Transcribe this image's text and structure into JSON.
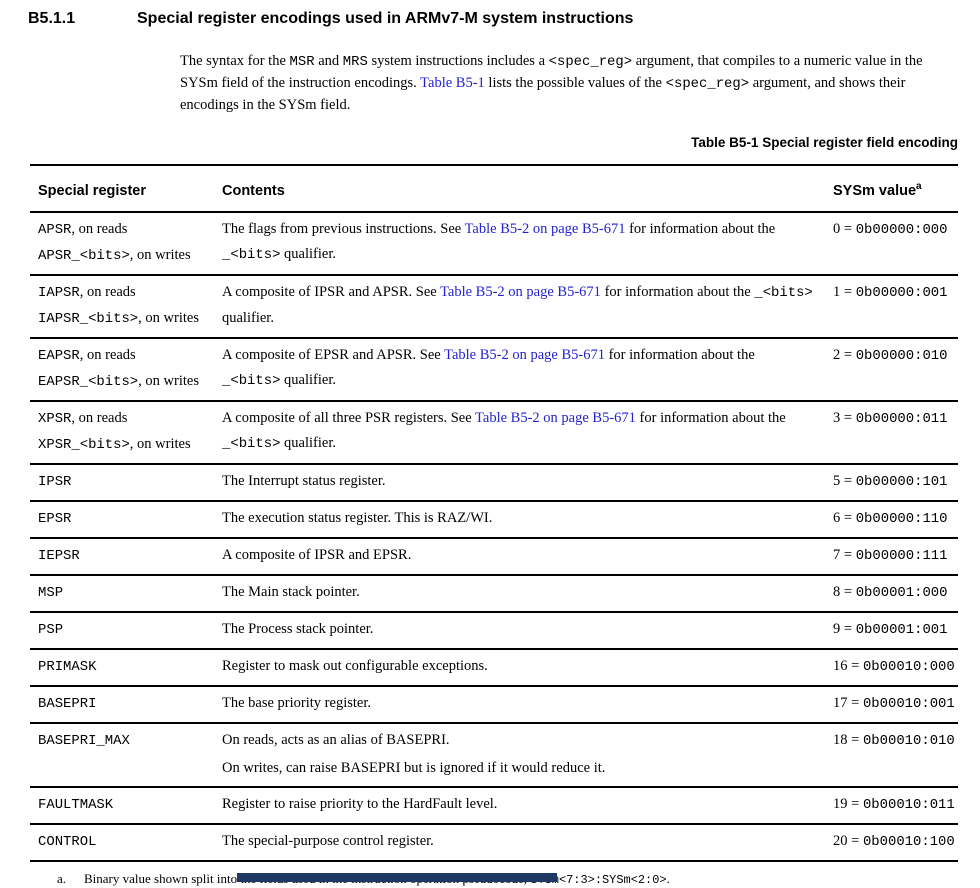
{
  "colors": {
    "link": "#2222d2",
    "text": "#000000",
    "rule": "#000000",
    "bottom_bar": "#1f3864"
  },
  "section": {
    "number": "B5.1.1",
    "title": "Special register encodings used in ARMv7-M system instructions"
  },
  "intro": {
    "pieces": [
      {
        "t": "The syntax for the ",
        "k": "plain"
      },
      {
        "t": "MSR",
        "k": "mono"
      },
      {
        "t": " and ",
        "k": "plain"
      },
      {
        "t": "MRS",
        "k": "mono"
      },
      {
        "t": " system instructions includes a ",
        "k": "plain"
      },
      {
        "t": "<spec_reg>",
        "k": "mono"
      },
      {
        "t": " argument, that compiles to a numeric value in the SYSm field of the instruction encodings. ",
        "k": "plain"
      },
      {
        "t": "Table B5-1",
        "k": "link",
        "name": "table-b5-1-link"
      },
      {
        "t": " lists the possible values of the ",
        "k": "plain"
      },
      {
        "t": "<spec_reg>",
        "k": "mono"
      },
      {
        "t": " argument, and shows their encodings in the SYSm field.",
        "k": "plain"
      }
    ]
  },
  "table": {
    "caption": "Table B5-1 Special register field encoding",
    "columns": [
      {
        "label": "Special register"
      },
      {
        "label": "Contents"
      },
      {
        "label": "SYSm value",
        "sup": "a"
      }
    ],
    "rows": [
      {
        "register_lines": [
          [
            {
              "t": "APSR",
              "k": "mono"
            },
            {
              "t": ", on reads",
              "k": "plain"
            }
          ],
          [
            {
              "t": "APSR_<bits>",
              "k": "mono"
            },
            {
              "t": ", on writes",
              "k": "plain"
            }
          ]
        ],
        "content_lines": [
          [
            {
              "t": "The flags from previous instructions. See ",
              "k": "plain"
            },
            {
              "t": "Table B5-2 on page B5-671",
              "k": "link",
              "name": "table-b5-2-link"
            },
            {
              "t": " for information about the ",
              "k": "plain"
            },
            {
              "t": "_<bits>",
              "k": "mono"
            },
            {
              "t": " qualifier.",
              "k": "plain"
            }
          ]
        ],
        "sysm": {
          "dec": "0",
          "sep": " = ",
          "bin": "0b00000:000"
        }
      },
      {
        "register_lines": [
          [
            {
              "t": "IAPSR",
              "k": "mono"
            },
            {
              "t": ", on reads",
              "k": "plain"
            }
          ],
          [
            {
              "t": "IAPSR_<bits>",
              "k": "mono"
            },
            {
              "t": ", on writes",
              "k": "plain"
            }
          ]
        ],
        "content_lines": [
          [
            {
              "t": "A composite of IPSR and APSR. See ",
              "k": "plain"
            },
            {
              "t": "Table B5-2 on page B5-671",
              "k": "link",
              "name": "table-b5-2-link"
            },
            {
              "t": " for information about the ",
              "k": "plain"
            },
            {
              "t": "_<bits>",
              "k": "mono"
            },
            {
              "t": " qualifier.",
              "k": "plain"
            }
          ]
        ],
        "sysm": {
          "dec": "1",
          "sep": " = ",
          "bin": "0b00000:001"
        }
      },
      {
        "register_lines": [
          [
            {
              "t": "EAPSR",
              "k": "mono"
            },
            {
              "t": ", on reads",
              "k": "plain"
            }
          ],
          [
            {
              "t": "EAPSR_<bits>",
              "k": "mono"
            },
            {
              "t": ", on writes",
              "k": "plain"
            }
          ]
        ],
        "content_lines": [
          [
            {
              "t": "A composite of EPSR and APSR. See ",
              "k": "plain"
            },
            {
              "t": "Table B5-2 on page B5-671",
              "k": "link",
              "name": "table-b5-2-link"
            },
            {
              "t": " for information about the ",
              "k": "plain"
            },
            {
              "t": "_<bits>",
              "k": "mono"
            },
            {
              "t": " qualifier.",
              "k": "plain"
            }
          ]
        ],
        "sysm": {
          "dec": "2",
          "sep": " = ",
          "bin": "0b00000:010"
        }
      },
      {
        "register_lines": [
          [
            {
              "t": "XPSR",
              "k": "mono"
            },
            {
              "t": ", on reads",
              "k": "plain"
            }
          ],
          [
            {
              "t": "XPSR_<bits>",
              "k": "mono"
            },
            {
              "t": ", on writes",
              "k": "plain"
            }
          ]
        ],
        "content_lines": [
          [
            {
              "t": "A composite of all three PSR registers. See ",
              "k": "plain"
            },
            {
              "t": "Table B5-2 on page B5-671",
              "k": "link",
              "name": "table-b5-2-link"
            },
            {
              "t": " for information about the ",
              "k": "plain"
            },
            {
              "t": "_<bits>",
              "k": "mono"
            },
            {
              "t": " qualifier.",
              "k": "plain"
            }
          ]
        ],
        "sysm": {
          "dec": "3",
          "sep": " = ",
          "bin": "0b00000:011"
        }
      },
      {
        "register_lines": [
          [
            {
              "t": "IPSR",
              "k": "mono"
            }
          ]
        ],
        "content_lines": [
          [
            {
              "t": "The Interrupt status register.",
              "k": "plain"
            }
          ]
        ],
        "sysm": {
          "dec": "5",
          "sep": " = ",
          "bin": "0b00000:101"
        }
      },
      {
        "register_lines": [
          [
            {
              "t": "EPSR",
              "k": "mono"
            }
          ]
        ],
        "content_lines": [
          [
            {
              "t": "The execution status register. This is RAZ/WI.",
              "k": "plain"
            }
          ]
        ],
        "sysm": {
          "dec": "6",
          "sep": " = ",
          "bin": "0b00000:110"
        }
      },
      {
        "register_lines": [
          [
            {
              "t": "IEPSR",
              "k": "mono"
            }
          ]
        ],
        "content_lines": [
          [
            {
              "t": "A composite of IPSR and EPSR.",
              "k": "plain"
            }
          ]
        ],
        "sysm": {
          "dec": "7",
          "sep": " = ",
          "bin": "0b00000:111"
        }
      },
      {
        "register_lines": [
          [
            {
              "t": "MSP",
              "k": "mono"
            }
          ]
        ],
        "content_lines": [
          [
            {
              "t": "The Main stack pointer.",
              "k": "plain"
            }
          ]
        ],
        "sysm": {
          "dec": "8",
          "sep": " = ",
          "bin": "0b00001:000"
        }
      },
      {
        "register_lines": [
          [
            {
              "t": "PSP",
              "k": "mono"
            }
          ]
        ],
        "content_lines": [
          [
            {
              "t": "The Process stack pointer.",
              "k": "plain"
            }
          ]
        ],
        "sysm": {
          "dec": "9",
          "sep": " = ",
          "bin": "0b00001:001"
        }
      },
      {
        "register_lines": [
          [
            {
              "t": "PRIMASK",
              "k": "mono"
            }
          ]
        ],
        "content_lines": [
          [
            {
              "t": "Register to mask out configurable exceptions.",
              "k": "plain"
            }
          ]
        ],
        "sysm": {
          "dec": "16",
          "sep": " = ",
          "bin": "0b00010:000"
        }
      },
      {
        "register_lines": [
          [
            {
              "t": "BASEPRI",
              "k": "mono"
            }
          ]
        ],
        "content_lines": [
          [
            {
              "t": "The base priority register.",
              "k": "plain"
            }
          ]
        ],
        "sysm": {
          "dec": "17",
          "sep": " = ",
          "bin": "0b00010:001"
        }
      },
      {
        "register_lines": [
          [
            {
              "t": "BASEPRI_MAX",
              "k": "mono"
            }
          ]
        ],
        "content_lines": [
          [
            {
              "t": "On reads, acts as an alias of BASEPRI.",
              "k": "plain"
            }
          ],
          [
            {
              "t": "On writes, can raise BASEPRI but is ignored if it would reduce it.",
              "k": "plain"
            }
          ]
        ],
        "sysm": {
          "dec": "18",
          "sep": " = ",
          "bin": "0b00010:010"
        }
      },
      {
        "register_lines": [
          [
            {
              "t": "FAULTMASK",
              "k": "mono"
            }
          ]
        ],
        "content_lines": [
          [
            {
              "t": "Register to raise priority to the HardFault level.",
              "k": "plain"
            }
          ]
        ],
        "sysm": {
          "dec": "19",
          "sep": " = ",
          "bin": "0b00010:011"
        }
      },
      {
        "register_lines": [
          [
            {
              "t": "CONTROL",
              "k": "mono"
            }
          ]
        ],
        "content_lines": [
          [
            {
              "t": "The special-purpose control register.",
              "k": "plain"
            }
          ]
        ],
        "sysm": {
          "dec": "20",
          "sep": " = ",
          "bin": "0b00010:100"
        }
      }
    ]
  },
  "footnote": {
    "marker": "a.",
    "pieces": [
      {
        "t": "Binary value shown split into the fields used in the instruction operation pseudocode, ",
        "k": "plain"
      },
      {
        "t": "SYSm<7:3>:SYSm<2:0>",
        "k": "mono"
      },
      {
        "t": ".",
        "k": "plain"
      }
    ]
  }
}
